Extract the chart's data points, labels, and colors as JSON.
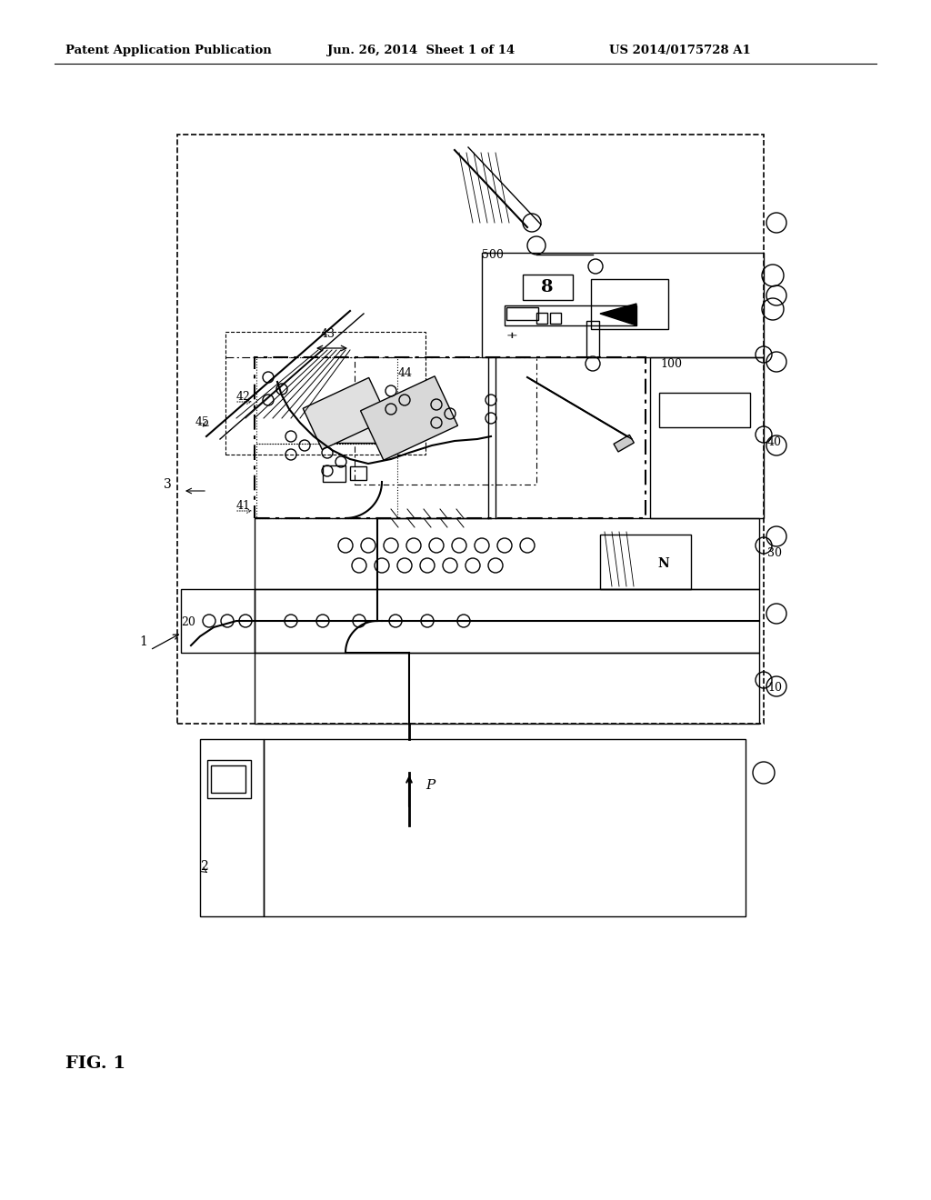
{
  "bg_color": "#ffffff",
  "header_left": "Patent Application Publication",
  "header_mid": "Jun. 26, 2014  Sheet 1 of 14",
  "header_right": "US 2014/0175728 A1",
  "fig_label": "FIG. 1"
}
